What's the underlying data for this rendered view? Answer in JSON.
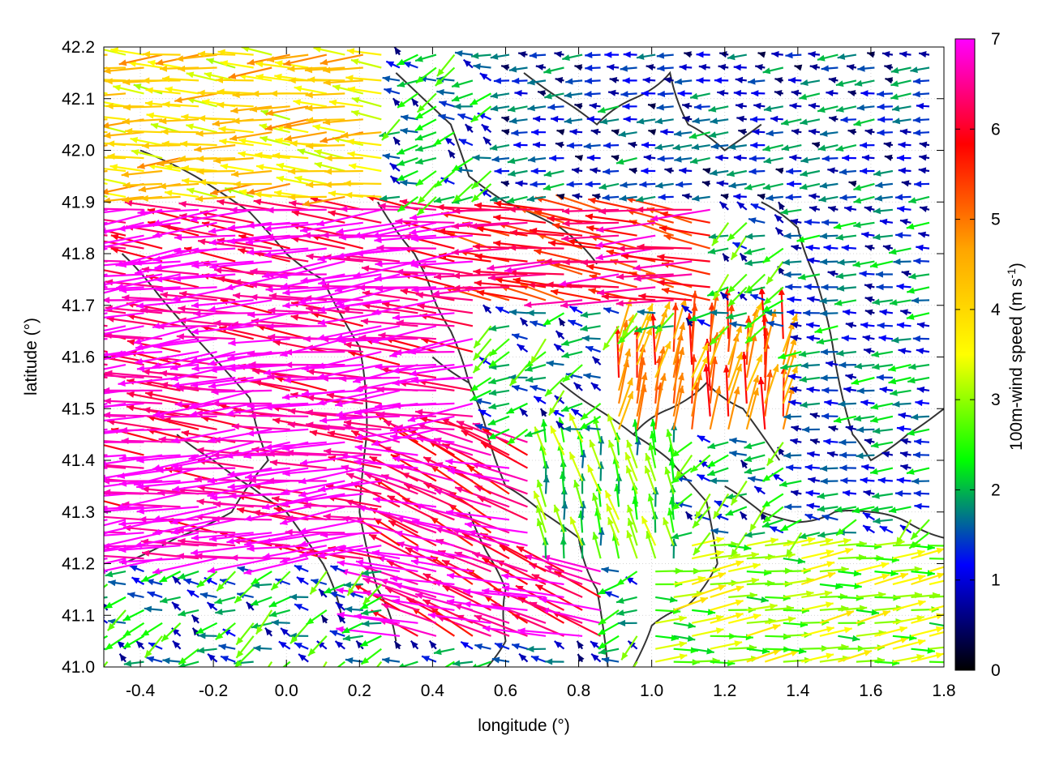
{
  "chart_data": {
    "type": "vector-field",
    "xlabel": "longitude (°)",
    "ylabel": "latitude (°)",
    "xlim": [
      -0.5,
      1.8
    ],
    "ylim": [
      41.0,
      42.2
    ],
    "x_ticks": [
      -0.4,
      -0.2,
      0.0,
      0.2,
      0.4,
      0.6,
      0.8,
      1.0,
      1.2,
      1.4,
      1.6,
      1.8
    ],
    "x_tick_labels": [
      "-0.4",
      "-0.2",
      "0.0",
      "0.2",
      "0.4",
      "0.6",
      "0.8",
      "1.0",
      "1.2",
      "1.4",
      "1.6",
      "1.8"
    ],
    "y_ticks": [
      41.0,
      41.1,
      41.2,
      41.3,
      41.4,
      41.5,
      41.6,
      41.7,
      41.8,
      41.9,
      42.0,
      42.1,
      42.2
    ],
    "y_tick_labels": [
      "41.0",
      "41.1",
      "41.2",
      "41.3",
      "41.4",
      "41.5",
      "41.6",
      "41.7",
      "41.8",
      "41.9",
      "42.0",
      "42.1",
      "42.2"
    ],
    "grid": true,
    "colorbar": {
      "label_main": "100m-wind speed (m s",
      "label_sup": "-1",
      "label_close": ")",
      "range": [
        0,
        7
      ],
      "ticks": [
        0,
        1,
        2,
        3,
        4,
        5,
        6,
        7
      ],
      "tick_labels": [
        "0",
        "1",
        "2",
        "3",
        "4",
        "5",
        "6",
        "7"
      ],
      "colors": [
        "#000000",
        "#0000ff",
        "#00ff00",
        "#ffff00",
        "#ffa500",
        "#ff0000",
        "#ff00ff"
      ]
    },
    "arrow_spacing_deg": [
      0.05,
      0.025
    ],
    "wind_regions": [
      {
        "lon": [
          -0.5,
          0.55
        ],
        "lat": [
          41.2,
          41.9
        ],
        "dir_deg": 180,
        "speed": 6.8
      },
      {
        "lon": [
          -0.5,
          0.3
        ],
        "lat": [
          41.9,
          42.2
        ],
        "dir_deg": 178,
        "speed": 4.0
      },
      {
        "lon": [
          0.3,
          0.9
        ],
        "lat": [
          41.05,
          41.45
        ],
        "dir_deg": 160,
        "speed": 6.5
      },
      {
        "lon": [
          0.55,
          1.2
        ],
        "lat": [
          41.7,
          41.9
        ],
        "dir_deg": 175,
        "speed": 6.0
      },
      {
        "lon": [
          0.9,
          1.4
        ],
        "lat": [
          41.45,
          41.65
        ],
        "dir_deg": 80,
        "speed": 5.0
      },
      {
        "lon": [
          1.0,
          1.8
        ],
        "lat": [
          41.0,
          41.25
        ],
        "dir_deg": 5,
        "speed": 3.0
      },
      {
        "lon": [
          0.6,
          1.8
        ],
        "lat": [
          41.9,
          42.2
        ],
        "dir_deg": 180,
        "speed": 1.2
      },
      {
        "lon": [
          1.4,
          1.8
        ],
        "lat": [
          41.3,
          41.9
        ],
        "dir_deg": 180,
        "speed": 1.5
      },
      {
        "lon": [
          0.7,
          1.1
        ],
        "lat": [
          41.2,
          41.45
        ],
        "dir_deg": 100,
        "speed": 2.5
      }
    ],
    "contours": [
      [
        [
          -0.4,
          42.0
        ],
        [
          -0.25,
          41.95
        ],
        [
          -0.1,
          41.88
        ],
        [
          0.0,
          41.8
        ],
        [
          0.1,
          41.75
        ],
        [
          0.2,
          41.62
        ],
        [
          0.22,
          41.45
        ],
        [
          0.2,
          41.3
        ],
        [
          0.25,
          41.15
        ],
        [
          0.3,
          41.05
        ]
      ],
      [
        [
          -0.45,
          41.8
        ],
        [
          -0.35,
          41.72
        ],
        [
          -0.2,
          41.6
        ],
        [
          -0.1,
          41.52
        ],
        [
          -0.05,
          41.4
        ],
        [
          -0.15,
          41.3
        ],
        [
          -0.3,
          41.25
        ],
        [
          -0.45,
          41.2
        ]
      ],
      [
        [
          0.3,
          42.15
        ],
        [
          0.45,
          42.05
        ],
        [
          0.5,
          41.95
        ],
        [
          0.6,
          41.9
        ],
        [
          0.75,
          41.85
        ],
        [
          0.85,
          41.78
        ]
      ],
      [
        [
          0.4,
          41.6
        ],
        [
          0.5,
          41.55
        ],
        [
          0.55,
          41.45
        ],
        [
          0.6,
          41.35
        ],
        [
          0.7,
          41.3
        ],
        [
          0.8,
          41.25
        ],
        [
          0.85,
          41.15
        ],
        [
          0.88,
          41.0
        ]
      ],
      [
        [
          0.5,
          41.3
        ],
        [
          0.55,
          41.22
        ],
        [
          0.6,
          41.15
        ],
        [
          0.6,
          41.05
        ],
        [
          0.55,
          41.0
        ]
      ],
      [
        [
          0.65,
          42.15
        ],
        [
          0.75,
          42.1
        ],
        [
          0.85,
          42.05
        ],
        [
          0.95,
          42.1
        ],
        [
          1.05,
          42.15
        ],
        [
          1.1,
          42.05
        ],
        [
          1.2,
          42.0
        ],
        [
          1.3,
          42.05
        ]
      ],
      [
        [
          0.95,
          41.45
        ],
        [
          1.05,
          41.4
        ],
        [
          1.15,
          41.32
        ],
        [
          1.18,
          41.2
        ],
        [
          1.1,
          41.12
        ],
        [
          1.0,
          41.08
        ],
        [
          0.95,
          41.0
        ]
      ],
      [
        [
          1.3,
          41.9
        ],
        [
          1.4,
          41.85
        ],
        [
          1.45,
          41.75
        ],
        [
          1.5,
          41.6
        ],
        [
          1.55,
          41.45
        ],
        [
          1.6,
          41.4
        ],
        [
          1.7,
          41.45
        ],
        [
          1.8,
          41.5
        ]
      ],
      [
        [
          1.2,
          41.35
        ],
        [
          1.3,
          41.3
        ],
        [
          1.4,
          41.28
        ],
        [
          1.5,
          41.3
        ],
        [
          1.6,
          41.3
        ],
        [
          1.7,
          41.28
        ],
        [
          1.8,
          41.25
        ]
      ],
      [
        [
          -0.3,
          41.45
        ],
        [
          -0.2,
          41.4
        ],
        [
          -0.1,
          41.35
        ],
        [
          0.0,
          41.3
        ],
        [
          0.1,
          41.2
        ],
        [
          0.15,
          41.1
        ]
      ],
      [
        [
          0.25,
          41.9
        ],
        [
          0.35,
          41.8
        ],
        [
          0.4,
          41.72
        ],
        [
          0.45,
          41.65
        ],
        [
          0.5,
          41.55
        ]
      ],
      [
        [
          0.75,
          41.55
        ],
        [
          0.85,
          41.5
        ],
        [
          0.95,
          41.45
        ],
        [
          1.05,
          41.5
        ],
        [
          1.15,
          41.55
        ],
        [
          1.25,
          41.5
        ],
        [
          1.35,
          41.4
        ]
      ]
    ]
  }
}
